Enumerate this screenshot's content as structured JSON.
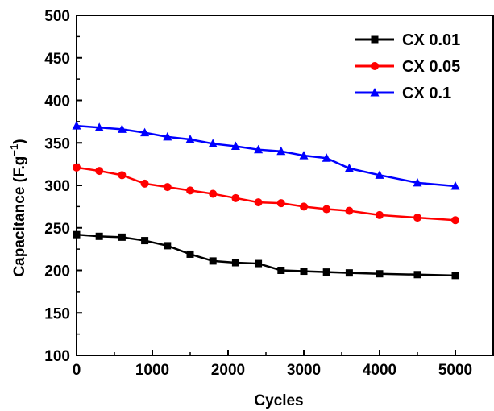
{
  "chart_data": {
    "type": "line",
    "xlabel": "Cycles",
    "ylabel_main": "Capacitance (F.g",
    "ylabel_sup": "−1",
    "ylabel_end": ")",
    "xlim": [
      0,
      5500
    ],
    "ylim": [
      100,
      500
    ],
    "xticks": [
      0,
      1000,
      2000,
      3000,
      4000,
      5000
    ],
    "yticks": [
      100,
      150,
      200,
      250,
      300,
      350,
      400,
      450,
      500
    ],
    "legend_position": "top-right",
    "grid": false,
    "series": [
      {
        "name": "CX 0.01",
        "color": "#000000",
        "marker": "square",
        "x": [
          0,
          300,
          600,
          900,
          1200,
          1500,
          1800,
          2100,
          2400,
          2700,
          3000,
          3300,
          3600,
          4000,
          4500,
          5000
        ],
        "y": [
          242,
          240,
          239,
          235,
          229,
          219,
          211,
          209,
          208,
          200,
          199,
          198,
          197,
          196,
          195,
          194
        ]
      },
      {
        "name": "CX 0.05",
        "color": "#ff0000",
        "marker": "circle",
        "x": [
          0,
          300,
          600,
          900,
          1200,
          1500,
          1800,
          2100,
          2400,
          2700,
          3000,
          3300,
          3600,
          4000,
          4500,
          5000
        ],
        "y": [
          321,
          317,
          312,
          302,
          298,
          294,
          290,
          285,
          280,
          279,
          275,
          272,
          270,
          265,
          262,
          259
        ]
      },
      {
        "name": "CX 0.1",
        "color": "#0000ff",
        "marker": "triangle",
        "x": [
          0,
          300,
          600,
          900,
          1200,
          1500,
          1800,
          2100,
          2400,
          2700,
          3000,
          3300,
          3600,
          4000,
          4500,
          5000
        ],
        "y": [
          370,
          368,
          366,
          362,
          357,
          354,
          349,
          346,
          342,
          340,
          335,
          332,
          320,
          312,
          303,
          299
        ]
      }
    ]
  }
}
